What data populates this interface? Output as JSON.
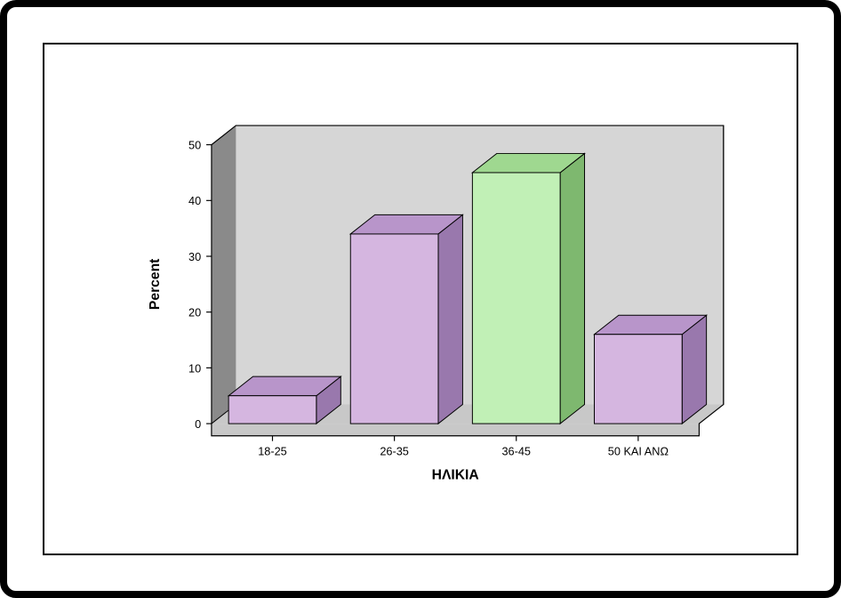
{
  "chart": {
    "type": "bar-3d",
    "xlabel": "ΗΛΙΚΙΑ",
    "ylabel": "Percent",
    "label_fontsize": 16,
    "label_fontweight": "bold",
    "tick_fontsize": 13,
    "categories": [
      "18-25",
      "26-35",
      "36-45",
      "50 ΚΑΙ ΑΝΩ"
    ],
    "values": [
      5,
      34,
      45,
      16
    ],
    "bar_front_colors": [
      "#d5b6e0",
      "#d5b6e0",
      "#c1f0b6",
      "#d5b6e0"
    ],
    "bar_top_colors": [
      "#b895ca",
      "#b895ca",
      "#9fd890",
      "#b895ca"
    ],
    "bar_side_colors": [
      "#9978ad",
      "#9978ad",
      "#7eb86f",
      "#9978ad"
    ],
    "plot_bg_color": "#d6d6d6",
    "floor_top_color": "#c8c8c8",
    "floor_side_color": "#777777",
    "wall_side_color": "#8a8a8a",
    "outer_border_color": "#000000",
    "inner_panel_border_color": "#000000",
    "page_bg_color": "#ffffff",
    "ylim": [
      0,
      50
    ],
    "ytick_step": 10,
    "bar_width": 0.72,
    "depth_dx": 28,
    "depth_dy": -22
  }
}
